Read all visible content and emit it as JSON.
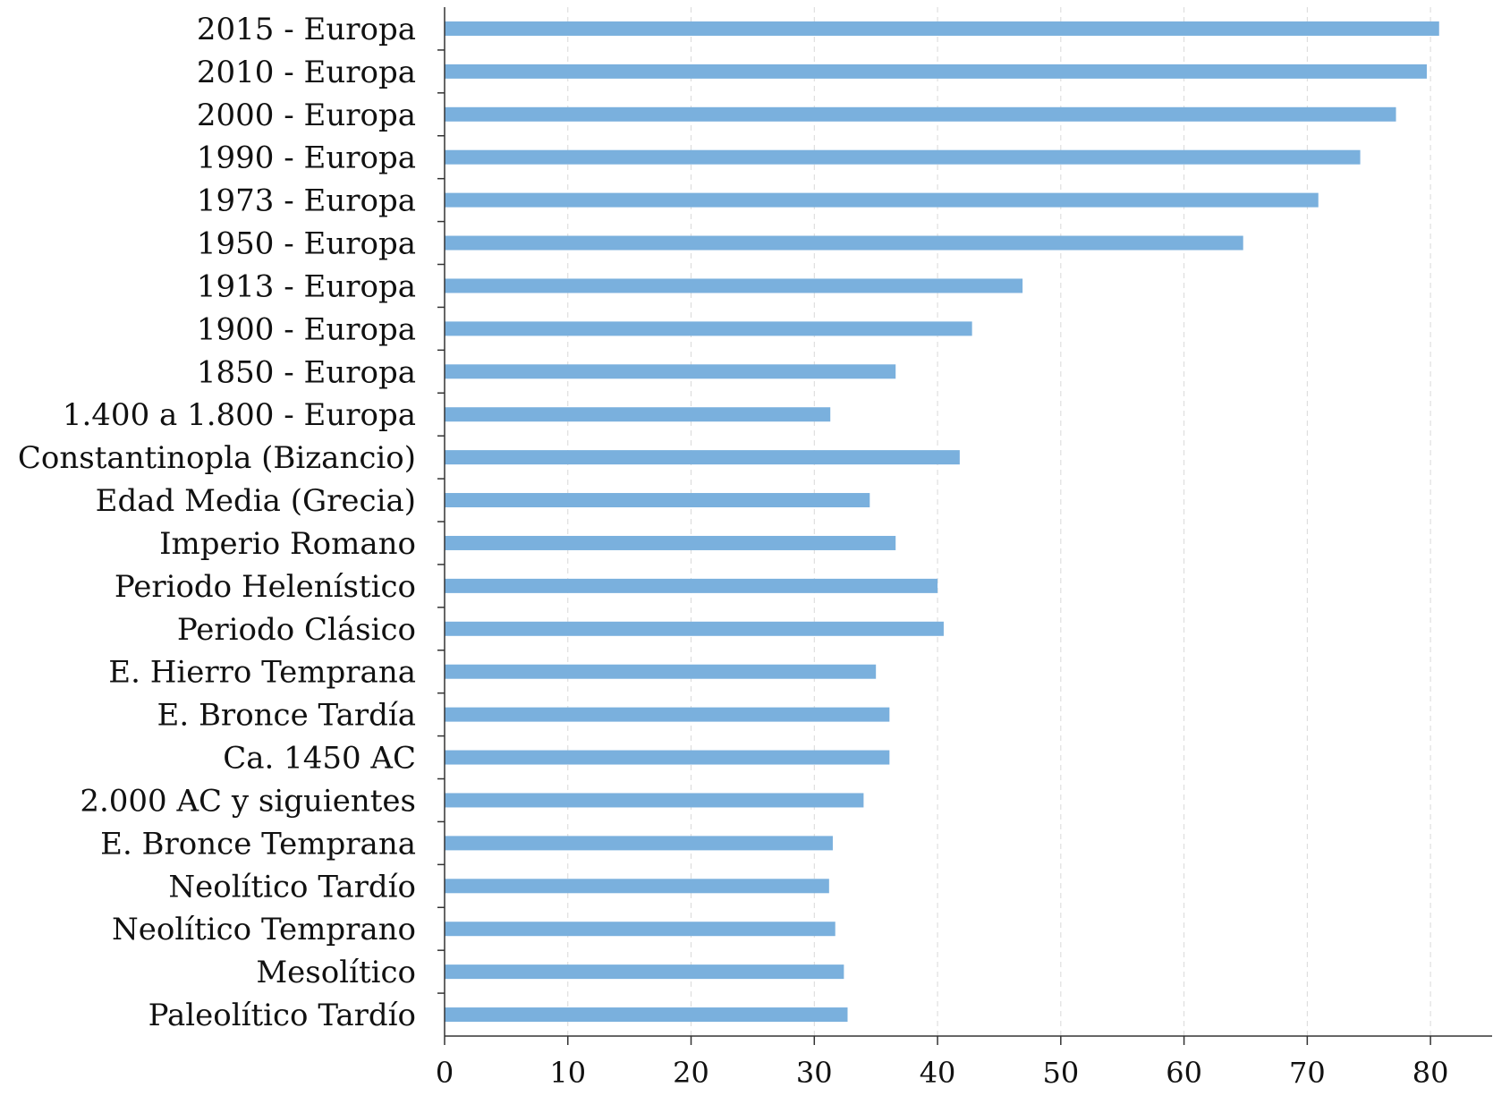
{
  "chart_data": {
    "type": "bar",
    "orientation": "horizontal",
    "categories": [
      "2015 - Europa",
      "2010 - Europa",
      "2000 - Europa",
      "1990 - Europa",
      "1973 - Europa",
      "1950 - Europa",
      "1913 - Europa",
      "1900 - Europa",
      "1850 - Europa",
      "1.400 a 1.800 - Europa",
      "Constantinopla (Bizancio)",
      "Edad Media (Grecia)",
      "Imperio Romano",
      "Periodo Helenístico",
      "Periodo Clásico",
      "E. Hierro Temprana",
      "E. Bronce Tardía",
      "Ca. 1450 AC",
      "2.000 AC y siguientes",
      "E. Bronce Temprana",
      "Neolítico Tardío",
      "Neolítico Temprano",
      "Mesolítico",
      "Paleolítico Tardío"
    ],
    "values": [
      80.7,
      79.7,
      77.2,
      74.3,
      70.9,
      64.8,
      46.9,
      42.8,
      36.6,
      31.3,
      41.8,
      34.5,
      36.6,
      40.0,
      40.5,
      35.0,
      36.1,
      36.1,
      34.0,
      31.5,
      31.2,
      31.7,
      32.4,
      32.7
    ],
    "xlim": [
      0,
      85
    ],
    "xticks": [
      "0",
      "10",
      "20",
      "30",
      "40",
      "50",
      "60",
      "70",
      "80"
    ],
    "grid": "vertical dashed",
    "bar_color": "#7ab0dd",
    "title": "",
    "xlabel": "",
    "ylabel": ""
  }
}
